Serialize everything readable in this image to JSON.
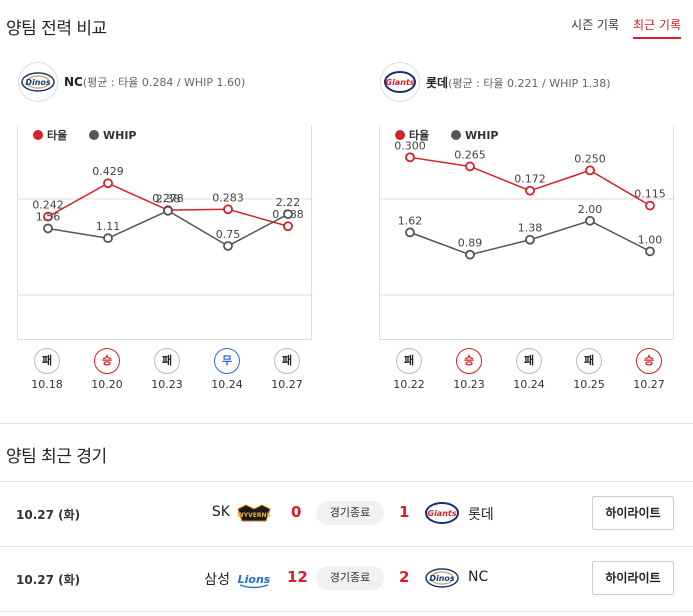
{
  "compare": {
    "title": "양팀 전력 비교",
    "tabs": [
      {
        "label": "시즌 기록",
        "active": false
      },
      {
        "label": "최근 기록",
        "active": true
      }
    ]
  },
  "teams": [
    {
      "key": "nc",
      "name": "NC",
      "summary": "(평균 : 타율 0.284 / WHIP 1.60)",
      "logo_icon": "dinos-logo-icon",
      "games": [
        {
          "result": "패",
          "date": "10.18"
        },
        {
          "result": "승",
          "date": "10.20"
        },
        {
          "result": "패",
          "date": "10.23"
        },
        {
          "result": "무",
          "date": "10.24"
        },
        {
          "result": "패",
          "date": "10.27"
        }
      ]
    },
    {
      "key": "lotte",
      "name": "롯데",
      "summary": "(평균 : 타율 0.221 / WHIP 1.38)",
      "logo_icon": "giants-logo-icon",
      "games": [
        {
          "result": "패",
          "date": "10.22"
        },
        {
          "result": "승",
          "date": "10.23"
        },
        {
          "result": "패",
          "date": "10.24"
        },
        {
          "result": "패",
          "date": "10.25"
        },
        {
          "result": "승",
          "date": "10.27"
        }
      ]
    }
  ],
  "chart_data": [
    {
      "type": "line",
      "x": [
        "10.18",
        "10.20",
        "10.23",
        "10.24",
        "10.27"
      ],
      "legend_position": "top-left",
      "series": [
        {
          "name": "타율",
          "color": "#d6202a",
          "values": [
            0.242,
            0.429,
            0.278,
            0.283,
            0.188
          ],
          "labels": [
            "0.242",
            "0.429",
            "0.278",
            "0.283",
            "0.188"
          ],
          "ylim": [
            -0.45,
            0.75
          ]
        },
        {
          "name": "WHIP",
          "color": "#555555",
          "values": [
            1.56,
            1.11,
            2.38,
            0.75,
            2.22
          ],
          "labels": [
            "1.56",
            "1.11",
            "2.38",
            "0.75",
            "2.22"
          ],
          "ylim": [
            -3.6,
            6.3
          ]
        }
      ]
    },
    {
      "type": "line",
      "x": [
        "10.22",
        "10.23",
        "10.24",
        "10.25",
        "10.27"
      ],
      "legend_position": "top-left",
      "series": [
        {
          "name": "타율",
          "color": "#d6202a",
          "values": [
            0.3,
            0.265,
            0.172,
            0.25,
            0.115
          ],
          "labels": [
            "0.300",
            "0.265",
            "0.172",
            "0.250",
            "0.115"
          ],
          "ylim": [
            -0.4,
            0.42
          ]
        },
        {
          "name": "WHIP",
          "color": "#555555",
          "values": [
            1.62,
            0.89,
            1.38,
            2.0,
            1.0
          ],
          "labels": [
            "1.62",
            "0.89",
            "1.38",
            "2.00",
            "1.00"
          ],
          "ylim": [
            -1.9,
            5.1
          ]
        }
      ]
    }
  ],
  "recent": {
    "title": "양팀 최근 경기",
    "games": [
      {
        "date": "10.27 (화)",
        "home": "SK",
        "home_logo_icon": "wyverns-logo-icon",
        "home_score": "0",
        "status": "경기종료",
        "away_score": "1",
        "away_logo_icon": "giants-logo-icon",
        "away": "롯데",
        "button": "하이라이트"
      },
      {
        "date": "10.27 (화)",
        "home": "삼성",
        "home_logo_icon": "lions-logo-icon",
        "home_score": "12",
        "status": "경기종료",
        "away_score": "2",
        "away_logo_icon": "dinos-logo-icon",
        "away": "NC",
        "button": "하이라이트"
      }
    ]
  }
}
